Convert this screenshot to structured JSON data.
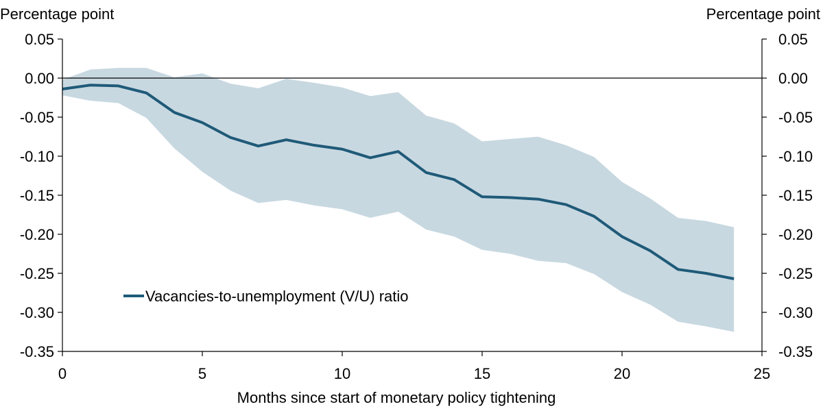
{
  "chart_data": {
    "type": "line",
    "title": "",
    "left_unit_label": "Percentage point",
    "right_unit_label": "Percentage point",
    "xlabel": "Months since start of monetary policy tightening",
    "xlim": [
      0,
      25
    ],
    "ylim": [
      -0.35,
      0.05
    ],
    "x_ticks": [
      0,
      5,
      10,
      15,
      20,
      25
    ],
    "x_tick_labels": [
      "0",
      "5",
      "10",
      "15",
      "20",
      "25"
    ],
    "y_ticks": [
      0.05,
      0.0,
      -0.05,
      -0.1,
      -0.15,
      -0.2,
      -0.25,
      -0.3,
      -0.35
    ],
    "y_tick_labels": [
      "0.05",
      "0.00",
      "-0.05",
      "-0.10",
      "-0.15",
      "-0.20",
      "-0.25",
      "-0.30",
      "-0.35"
    ],
    "zero_line": true,
    "legend_position": "lower-left",
    "series": [
      {
        "name": "Vacancies-to-unemployment (V/U) ratio",
        "color": "#1f5a78",
        "x": [
          0,
          1,
          2,
          3,
          4,
          5,
          6,
          7,
          8,
          9,
          10,
          11,
          12,
          13,
          14,
          15,
          16,
          17,
          18,
          19,
          20,
          21,
          22,
          23,
          24
        ],
        "values": [
          -0.014,
          -0.009,
          -0.01,
          -0.019,
          -0.044,
          -0.057,
          -0.076,
          -0.087,
          -0.079,
          -0.086,
          -0.091,
          -0.102,
          -0.094,
          -0.121,
          -0.13,
          -0.152,
          -0.153,
          -0.155,
          -0.162,
          -0.177,
          -0.203,
          -0.221,
          -0.245,
          -0.25,
          -0.257
        ]
      }
    ],
    "confidence_band": {
      "color": "#c8d8e1",
      "x": [
        0,
        1,
        2,
        3,
        4,
        5,
        6,
        7,
        8,
        9,
        10,
        11,
        12,
        13,
        14,
        15,
        16,
        17,
        18,
        19,
        20,
        21,
        22,
        23,
        24
      ],
      "upper": [
        -0.002,
        0.011,
        0.013,
        0.013,
        0.001,
        0.006,
        -0.007,
        -0.013,
        -0.001,
        -0.006,
        -0.012,
        -0.023,
        -0.018,
        -0.048,
        -0.058,
        -0.081,
        -0.078,
        -0.075,
        -0.086,
        -0.101,
        -0.133,
        -0.154,
        -0.179,
        -0.183,
        -0.191
      ],
      "lower": [
        -0.022,
        -0.029,
        -0.032,
        -0.051,
        -0.09,
        -0.12,
        -0.144,
        -0.16,
        -0.156,
        -0.163,
        -0.168,
        -0.179,
        -0.171,
        -0.194,
        -0.203,
        -0.22,
        -0.225,
        -0.234,
        -0.237,
        -0.251,
        -0.274,
        -0.29,
        -0.312,
        -0.318,
        -0.325
      ]
    }
  }
}
